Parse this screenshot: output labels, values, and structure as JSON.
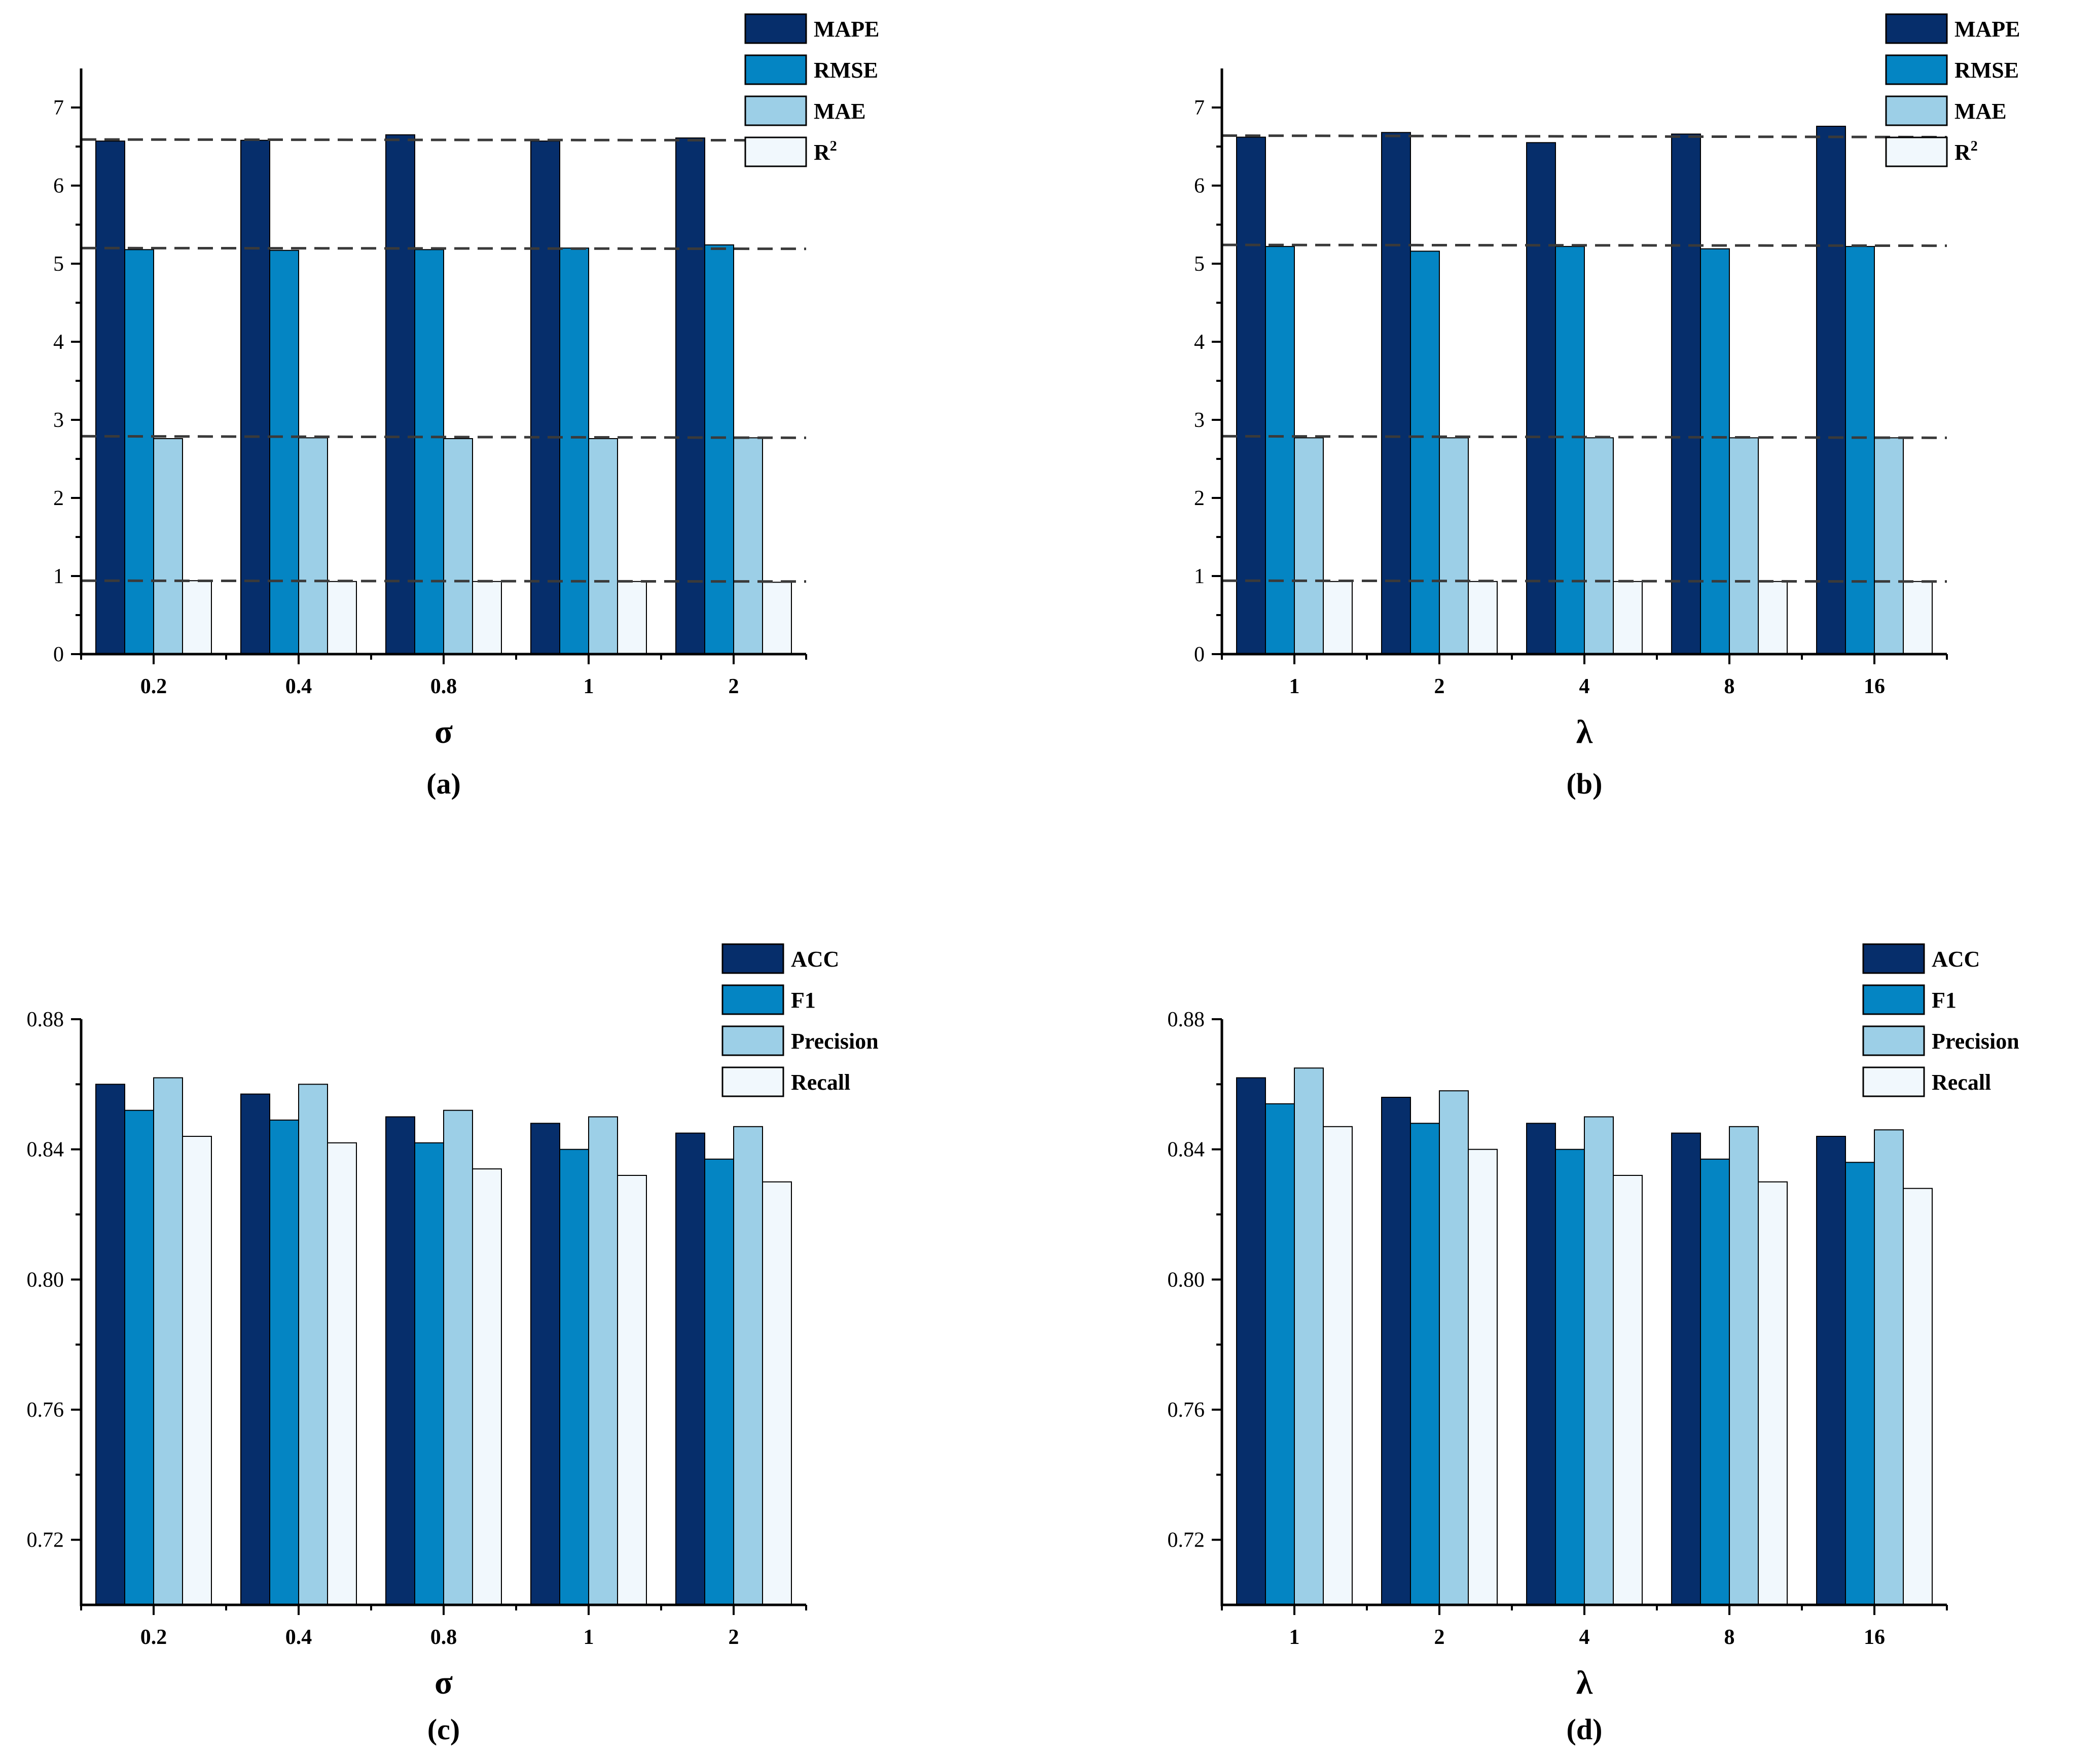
{
  "colors": {
    "series": [
      "#062e6b",
      "#0485c3",
      "#9ccfe7",
      "#f1f8fd"
    ],
    "axis": "#000000",
    "reference_line": "#3a3a3a"
  },
  "chart_data": [
    {
      "type": "bar",
      "caption": "(a)",
      "xlabel": "σ",
      "ylabel": "",
      "categories": [
        "0.2",
        "0.4",
        "0.8",
        "1",
        "2"
      ],
      "ylim": [
        0,
        7.5
      ],
      "yticks": [
        0,
        1,
        2,
        3,
        4,
        5,
        6,
        7
      ],
      "ytick_labels": [
        "0",
        "1",
        "2",
        "3",
        "4",
        "5",
        "6",
        "7"
      ],
      "series": [
        {
          "name": "MAPE",
          "values": [
            6.57,
            6.58,
            6.65,
            6.57,
            6.61
          ]
        },
        {
          "name": "RMSE",
          "values": [
            5.18,
            5.17,
            5.18,
            5.2,
            5.24
          ]
        },
        {
          "name": "MAE",
          "values": [
            2.76,
            2.77,
            2.76,
            2.76,
            2.77
          ]
        },
        {
          "name": "R²",
          "base": "R",
          "sup": "2",
          "values": [
            0.94,
            0.93,
            0.93,
            0.93,
            0.92
          ]
        }
      ],
      "reference_lines": [
        {
          "start": 6.59,
          "end": 6.58
        },
        {
          "start": 5.2,
          "end": 5.19
        },
        {
          "start": 2.79,
          "end": 2.77
        },
        {
          "start": 0.94,
          "end": 0.93
        }
      ],
      "legend_position": "top-right"
    },
    {
      "type": "bar",
      "caption": "(b)",
      "xlabel": "λ",
      "ylabel": "",
      "categories": [
        "1",
        "2",
        "4",
        "8",
        "16"
      ],
      "ylim": [
        0,
        7.5
      ],
      "yticks": [
        0,
        1,
        2,
        3,
        4,
        5,
        6,
        7
      ],
      "ytick_labels": [
        "0",
        "1",
        "2",
        "3",
        "4",
        "5",
        "6",
        "7"
      ],
      "series": [
        {
          "name": "MAPE",
          "values": [
            6.62,
            6.68,
            6.55,
            6.66,
            6.76
          ]
        },
        {
          "name": "RMSE",
          "values": [
            5.22,
            5.16,
            5.22,
            5.19,
            5.22
          ]
        },
        {
          "name": "MAE",
          "values": [
            2.77,
            2.77,
            2.77,
            2.77,
            2.77
          ]
        },
        {
          "name": "R²",
          "base": "R",
          "sup": "2",
          "values": [
            0.93,
            0.93,
            0.93,
            0.93,
            0.93
          ]
        }
      ],
      "reference_lines": [
        {
          "start": 6.64,
          "end": 6.62
        },
        {
          "start": 5.24,
          "end": 5.23
        },
        {
          "start": 2.79,
          "end": 2.77
        },
        {
          "start": 0.94,
          "end": 0.93
        }
      ],
      "legend_position": "top-right"
    },
    {
      "type": "bar",
      "caption": "(c)",
      "xlabel": "σ",
      "ylabel": "",
      "categories": [
        "0.2",
        "0.4",
        "0.8",
        "1",
        "2"
      ],
      "ylim": [
        0.7,
        0.88
      ],
      "yticks": [
        0.72,
        0.76,
        0.8,
        0.84,
        0.88
      ],
      "ytick_labels": [
        "0.72",
        "0.76",
        "0.80",
        "0.84",
        "0.88"
      ],
      "series": [
        {
          "name": "ACC",
          "values": [
            0.86,
            0.857,
            0.85,
            0.848,
            0.845
          ]
        },
        {
          "name": "F1",
          "values": [
            0.852,
            0.849,
            0.842,
            0.84,
            0.837
          ]
        },
        {
          "name": "Precision",
          "values": [
            0.862,
            0.86,
            0.852,
            0.85,
            0.847
          ]
        },
        {
          "name": "Recall",
          "values": [
            0.844,
            0.842,
            0.834,
            0.832,
            0.83
          ]
        }
      ],
      "reference_lines": [],
      "legend_position": "top-right"
    },
    {
      "type": "bar",
      "caption": "(d)",
      "xlabel": "λ",
      "ylabel": "",
      "categories": [
        "1",
        "2",
        "4",
        "8",
        "16"
      ],
      "ylim": [
        0.7,
        0.88
      ],
      "yticks": [
        0.72,
        0.76,
        0.8,
        0.84,
        0.88
      ],
      "ytick_labels": [
        "0.72",
        "0.76",
        "0.80",
        "0.84",
        "0.88"
      ],
      "series": [
        {
          "name": "ACC",
          "values": [
            0.862,
            0.856,
            0.848,
            0.845,
            0.844
          ]
        },
        {
          "name": "F1",
          "values": [
            0.854,
            0.848,
            0.84,
            0.837,
            0.836
          ]
        },
        {
          "name": "Precision",
          "values": [
            0.865,
            0.858,
            0.85,
            0.847,
            0.846
          ]
        },
        {
          "name": "Recall",
          "values": [
            0.847,
            0.84,
            0.832,
            0.83,
            0.828
          ]
        }
      ],
      "reference_lines": [],
      "legend_position": "top-right"
    }
  ]
}
